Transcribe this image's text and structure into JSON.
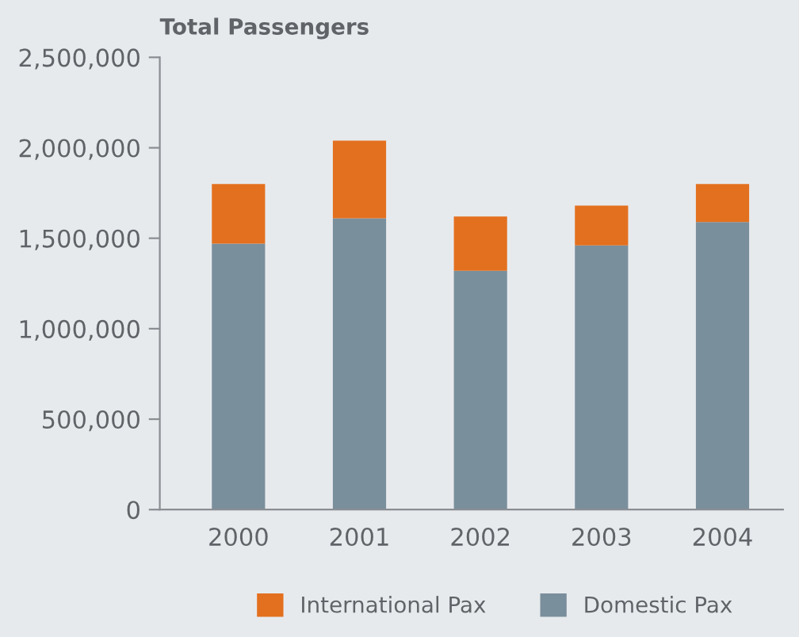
{
  "chart_data": {
    "type": "bar",
    "title": "Total Passengers",
    "categories": [
      "2000",
      "2001",
      "2002",
      "2003",
      "2004"
    ],
    "stacked": true,
    "series": [
      {
        "name": "Domestic Pax",
        "color": "#7a8f9c",
        "values": [
          1470000,
          1610000,
          1320000,
          1460000,
          1590000
        ]
      },
      {
        "name": "International Pax",
        "color": "#e3701f",
        "values": [
          330000,
          430000,
          300000,
          220000,
          210000
        ]
      }
    ],
    "ylim": [
      0,
      2500000
    ],
    "yticks": [
      {
        "value": 0,
        "label": "0"
      },
      {
        "value": 500000,
        "label": "500,000"
      },
      {
        "value": 1000000,
        "label": "1,000,000"
      },
      {
        "value": 1500000,
        "label": "1,500,000"
      },
      {
        "value": 2000000,
        "label": "2,000,000"
      },
      {
        "value": 2500000,
        "label": "2,500,000"
      }
    ],
    "grid": false,
    "legend": "bottom"
  }
}
